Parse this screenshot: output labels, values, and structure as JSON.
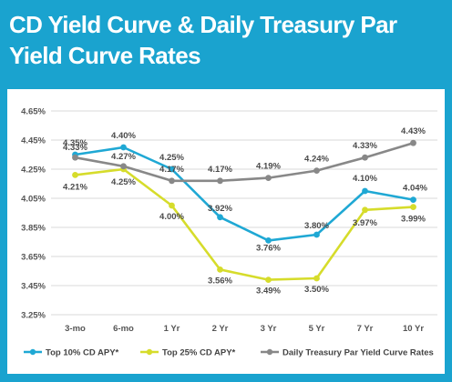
{
  "title": "CD Yield Curve & Daily Treasury Par Yield Curve Rates",
  "colors": {
    "background": "#1aa3cf",
    "top10": "#1fa8d4",
    "top25": "#d6dc2b",
    "treasury": "#888888"
  },
  "chart_data": {
    "type": "line",
    "categories": [
      "3-mo",
      "6-mo",
      "1 Yr",
      "2 Yr",
      "3 Yr",
      "5 Yr",
      "7 Yr",
      "10 Yr"
    ],
    "ylim": [
      3.25,
      4.65
    ],
    "yticks": [
      3.25,
      3.45,
      3.65,
      3.85,
      4.05,
      4.25,
      4.45,
      4.65
    ],
    "ytick_labels": [
      "3.25%",
      "3.45%",
      "3.65%",
      "3.85%",
      "4.05%",
      "4.25%",
      "4.45%",
      "4.65%"
    ],
    "grid": true,
    "legend_position": "bottom",
    "series": [
      {
        "name": "Top 10% CD APY*",
        "color": "#1fa8d4",
        "values": [
          4.35,
          4.4,
          4.25,
          3.92,
          3.76,
          3.8,
          4.1,
          4.04
        ],
        "labels": [
          "4.35%",
          "4.40%",
          "4.25%",
          "3.92%",
          "3.76%",
          "3.80%",
          "4.10%",
          "4.04%"
        ]
      },
      {
        "name": "Top 25% CD APY*",
        "color": "#d6dc2b",
        "values": [
          4.21,
          4.25,
          4.0,
          3.56,
          3.49,
          3.5,
          3.97,
          3.99
        ],
        "labels": [
          "4.21%",
          "4.25%",
          "4.00%",
          "3.56%",
          "3.49%",
          "3.50%",
          "3.97%",
          "3.99%"
        ]
      },
      {
        "name": "Daily Treasury Par Yield Curve Rates",
        "color": "#888888",
        "values": [
          4.33,
          4.27,
          4.17,
          4.17,
          4.19,
          4.24,
          4.33,
          4.43
        ],
        "labels": [
          "4.33%",
          "4.27%",
          "4.17%",
          "4.17%",
          "4.19%",
          "4.24%",
          "4.33%",
          "4.43%"
        ]
      }
    ]
  }
}
